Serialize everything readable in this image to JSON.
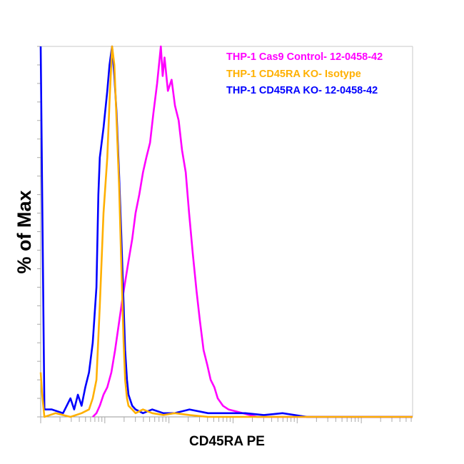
{
  "chart_data": {
    "type": "line",
    "title": "",
    "xlabel": "CD45RA PE",
    "ylabel": "% of Max",
    "xscale": "log (unlabeled ticks)",
    "xlim": [
      0,
      1000
    ],
    "ylim": [
      0,
      100
    ],
    "grid": false,
    "legend_position": "top-right",
    "series": [
      {
        "name": "THP-1 Cas9 Control- 12-0458-42",
        "color": "#ff00ff",
        "x": [
          140,
          150,
          159,
          169,
          179,
          190,
          200,
          210,
          220,
          236,
          246,
          255,
          265,
          275,
          284,
          294,
          303,
          313,
          318,
          323,
          328,
          333,
          342,
          352,
          361,
          371,
          380,
          390,
          399,
          409,
          419,
          428,
          438,
          448,
          457,
          467,
          476,
          490,
          505,
          525,
          543,
          562,
          582,
          620,
          700,
          1000
        ],
        "y": [
          0,
          1,
          3,
          6,
          8,
          12,
          18,
          25,
          32,
          42,
          48,
          55,
          60,
          66,
          70,
          74,
          82,
          90,
          95,
          100,
          92,
          97,
          88,
          91,
          84,
          80,
          72,
          66,
          55,
          44,
          34,
          26,
          18,
          14,
          10,
          8,
          5,
          3,
          2,
          1.5,
          1,
          0.5,
          0,
          0,
          0,
          0
        ]
      },
      {
        "name": "THP-1 CD45RA KO- Isotype",
        "color": "#ffb000",
        "x": [
          0,
          4,
          10,
          40,
          80,
          110,
          130,
          140,
          150,
          159,
          169,
          179,
          185,
          192,
          198,
          204,
          211,
          217,
          223,
          227,
          232,
          236,
          246,
          255,
          275,
          300,
          330,
          360,
          400,
          450,
          500,
          600,
          700,
          800,
          1000
        ],
        "y": [
          12,
          6,
          0,
          1,
          0,
          1,
          2,
          5,
          10,
          30,
          55,
          70,
          85,
          100,
          95,
          80,
          62,
          40,
          20,
          10,
          5,
          3,
          2,
          1,
          2,
          1,
          0.5,
          1,
          0.5,
          0,
          0,
          0,
          0,
          0,
          0
        ]
      },
      {
        "name": "THP-1 CD45RA KO- 12-0458-42",
        "color": "#0000ff",
        "x": [
          0,
          4,
          10,
          30,
          60,
          80,
          90,
          100,
          110,
          120,
          130,
          140,
          150,
          155,
          159,
          169,
          179,
          185,
          192,
          198,
          204,
          211,
          217,
          223,
          227,
          232,
          236,
          246,
          255,
          275,
          300,
          330,
          360,
          400,
          450,
          500,
          550,
          600,
          650,
          716,
          1000
        ],
        "y": [
          100,
          60,
          2,
          2,
          1,
          5,
          2,
          6,
          3,
          8,
          12,
          20,
          35,
          60,
          70,
          78,
          88,
          95,
          100,
          92,
          82,
          65,
          48,
          30,
          18,
          10,
          6,
          3,
          2,
          1,
          2,
          1,
          1,
          2,
          1,
          1,
          1,
          0.5,
          1,
          0,
          0
        ]
      }
    ]
  }
}
